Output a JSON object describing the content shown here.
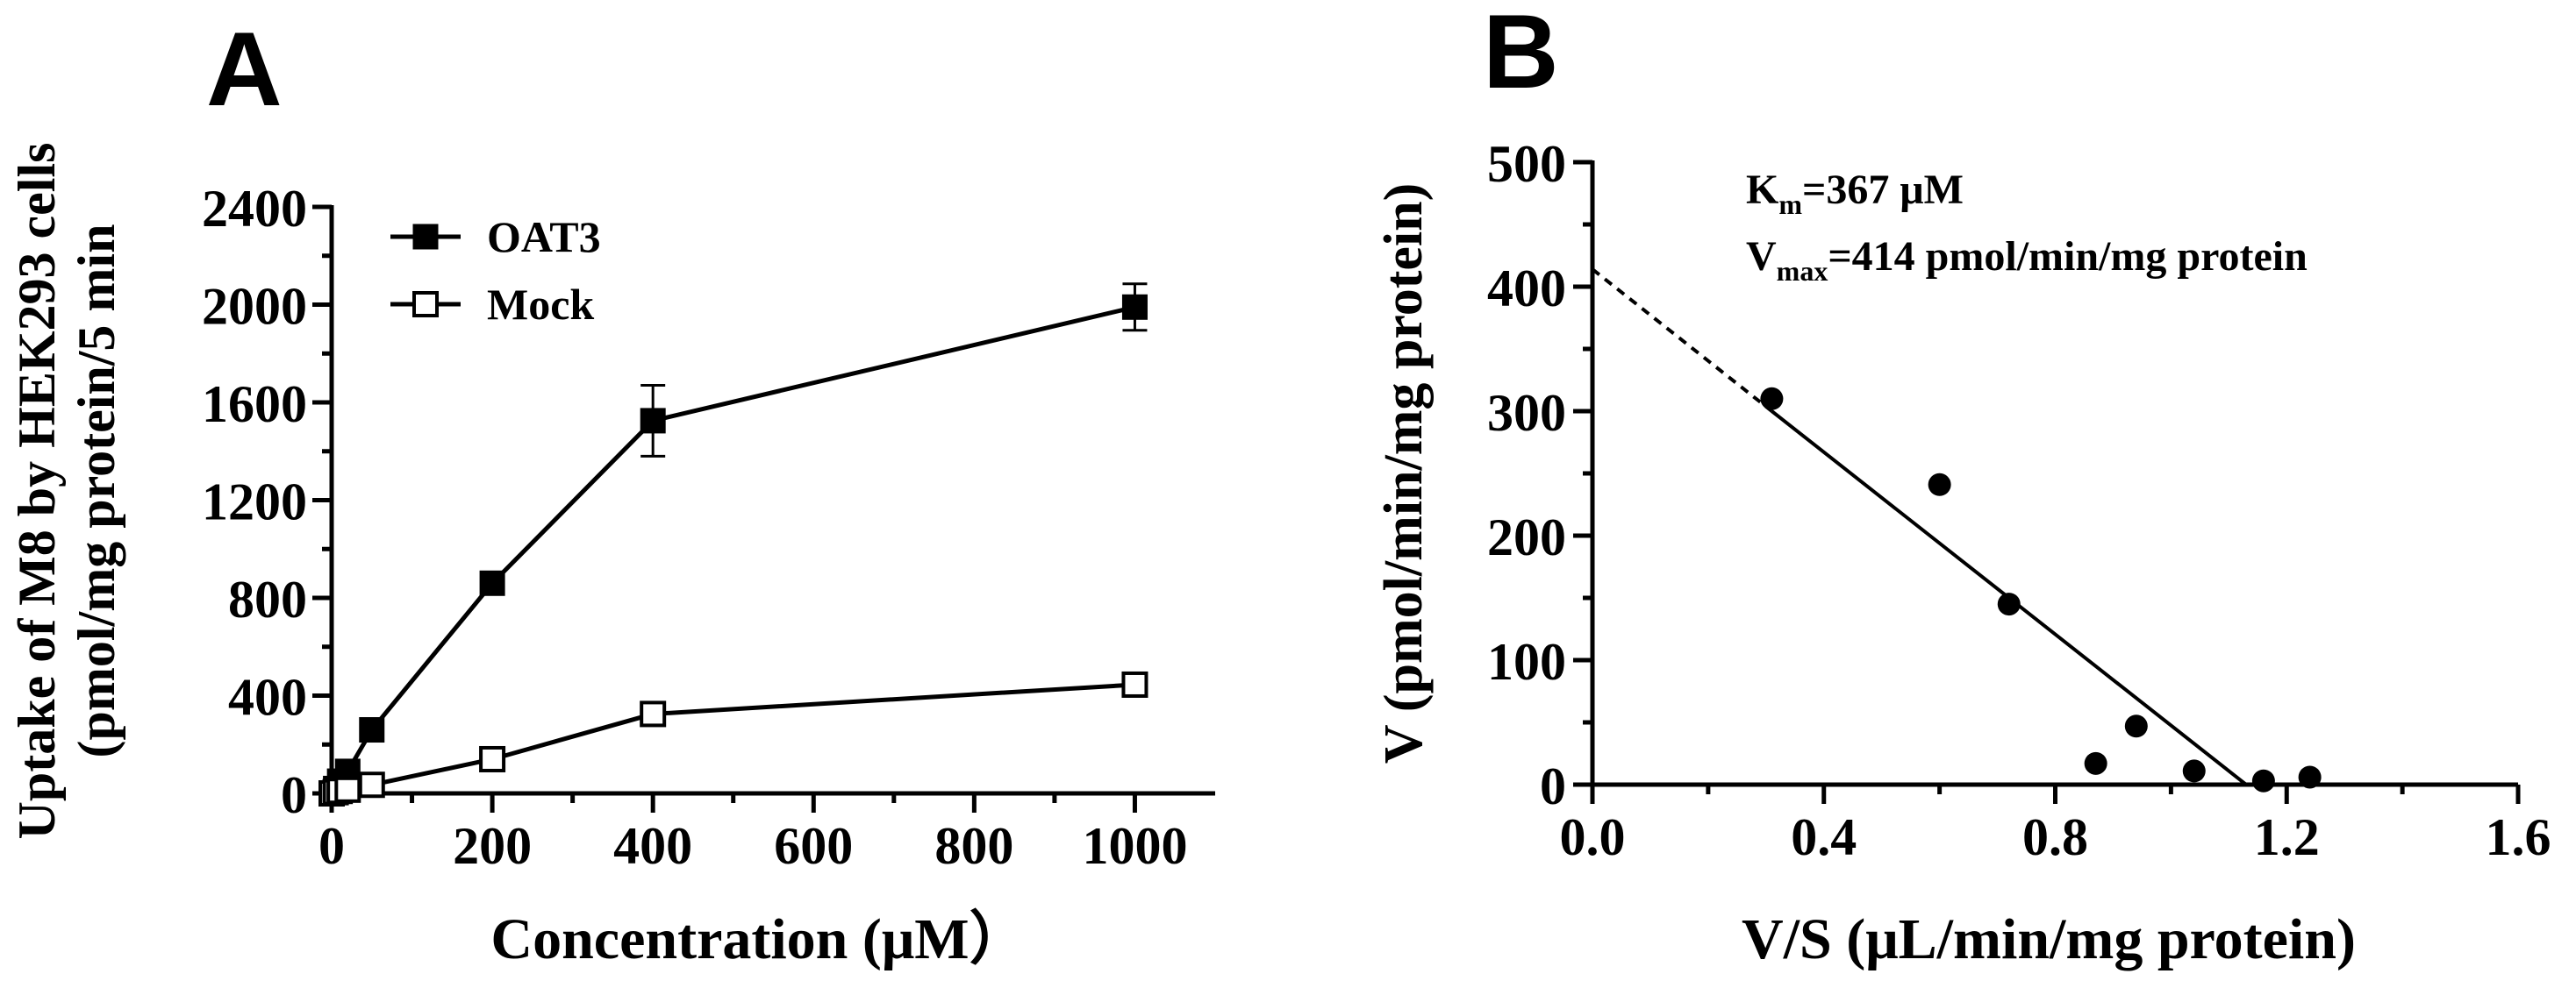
{
  "chart_data": [
    {
      "panel_label": "A",
      "type": "line",
      "title": "",
      "xlabel": "Concentration (μM）",
      "ylabel_line1": "Uptake of M8 by HEK293 cells",
      "ylabel_line2": "(pmol/mg protein/5 min",
      "xlim": [
        0,
        1100
      ],
      "ylim": [
        0,
        2400
      ],
      "xticks": [
        0,
        200,
        400,
        600,
        800,
        1000
      ],
      "yticks": [
        0,
        400,
        800,
        1200,
        1600,
        2000,
        2400
      ],
      "legend_position": "top-left",
      "series": [
        {
          "name": "OAT3",
          "marker": "filled-square",
          "points": [
            {
              "x": 0,
              "y": 0,
              "err": 0
            },
            {
              "x": 5,
              "y": 20,
              "err": 0
            },
            {
              "x": 10,
              "y": 50,
              "err": 0
            },
            {
              "x": 20,
              "y": 90,
              "err": 0
            },
            {
              "x": 50,
              "y": 260,
              "err": 0
            },
            {
              "x": 200,
              "y": 860,
              "err": 0
            },
            {
              "x": 400,
              "y": 1525,
              "err": 145
            },
            {
              "x": 1000,
              "y": 1990,
              "err": 95
            }
          ]
        },
        {
          "name": "Mock",
          "marker": "open-square",
          "points": [
            {
              "x": 0,
              "y": 0,
              "err": 0
            },
            {
              "x": 5,
              "y": 5,
              "err": 0
            },
            {
              "x": 10,
              "y": 10,
              "err": 0
            },
            {
              "x": 20,
              "y": 15,
              "err": 0
            },
            {
              "x": 50,
              "y": 35,
              "err": 0
            },
            {
              "x": 200,
              "y": 140,
              "err": 0
            },
            {
              "x": 400,
              "y": 325,
              "err": 0
            },
            {
              "x": 1000,
              "y": 445,
              "err": 0
            }
          ]
        }
      ]
    },
    {
      "panel_label": "B",
      "type": "scatter",
      "title": "",
      "xlabel": "V/S (μL/min/mg protein)",
      "ylabel": "V (pmol/min/mg protein)",
      "xlim": [
        0,
        1.6
      ],
      "ylim": [
        0,
        500
      ],
      "xticks": [
        0.0,
        0.4,
        0.8,
        1.2,
        1.6
      ],
      "xtick_labels": [
        "0.0",
        "0.4",
        "0.8",
        "1.2",
        "1.6"
      ],
      "yticks": [
        0,
        100,
        200,
        300,
        400,
        500
      ],
      "annotation_km": {
        "sym": "K",
        "sub": "m",
        "rest": "=367 μM"
      },
      "annotation_vmax": {
        "sym": "V",
        "sub": "max",
        "rest": "=414 pmol/min/mg protein"
      },
      "points": [
        {
          "x": 0.31,
          "y": 310
        },
        {
          "x": 0.6,
          "y": 241
        },
        {
          "x": 0.72,
          "y": 145
        },
        {
          "x": 0.87,
          "y": 17
        },
        {
          "x": 0.94,
          "y": 47
        },
        {
          "x": 1.04,
          "y": 11
        },
        {
          "x": 1.16,
          "y": 3
        },
        {
          "x": 1.24,
          "y": 6
        }
      ],
      "fit_line": {
        "x0": 0.31,
        "y0": 300,
        "x1": 1.13,
        "y1": 0
      },
      "extrapolation": {
        "x0": 0.0,
        "y0": 414,
        "x1": 0.31,
        "y1": 300
      }
    }
  ]
}
